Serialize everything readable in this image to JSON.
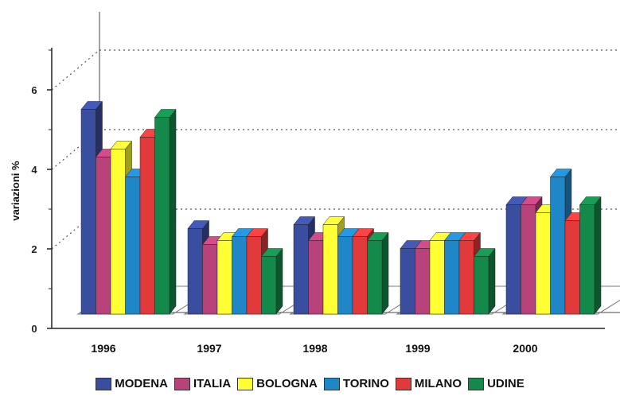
{
  "chart_data": {
    "type": "bar",
    "categories": [
      "1996",
      "1997",
      "1998",
      "1999",
      "2000"
    ],
    "series": [
      {
        "name": "MODENA",
        "color": "#3a4ea0",
        "values": [
          5.5,
          2.5,
          2.6,
          2.0,
          3.1
        ]
      },
      {
        "name": "ITALIA",
        "color": "#b8427a",
        "values": [
          4.3,
          2.1,
          2.2,
          2.0,
          3.1
        ]
      },
      {
        "name": "BOLOGNA",
        "color": "#ffff33",
        "values": [
          4.5,
          2.2,
          2.6,
          2.2,
          2.9
        ]
      },
      {
        "name": "TORINO",
        "color": "#1f86c8",
        "values": [
          3.8,
          2.3,
          2.3,
          2.2,
          3.8
        ]
      },
      {
        "name": "MILANO",
        "color": "#e23a3a",
        "values": [
          4.8,
          2.3,
          2.3,
          2.2,
          2.7
        ]
      },
      {
        "name": "UDINE",
        "color": "#148a4a",
        "values": [
          5.3,
          1.8,
          2.2,
          1.8,
          3.1
        ]
      }
    ],
    "title": "",
    "xlabel": "",
    "ylabel": "variazioni %",
    "ylim": [
      0,
      7
    ],
    "yticks": [
      "0",
      "2",
      "4",
      "6"
    ],
    "grid": "dotted",
    "legend_position": "bottom"
  }
}
